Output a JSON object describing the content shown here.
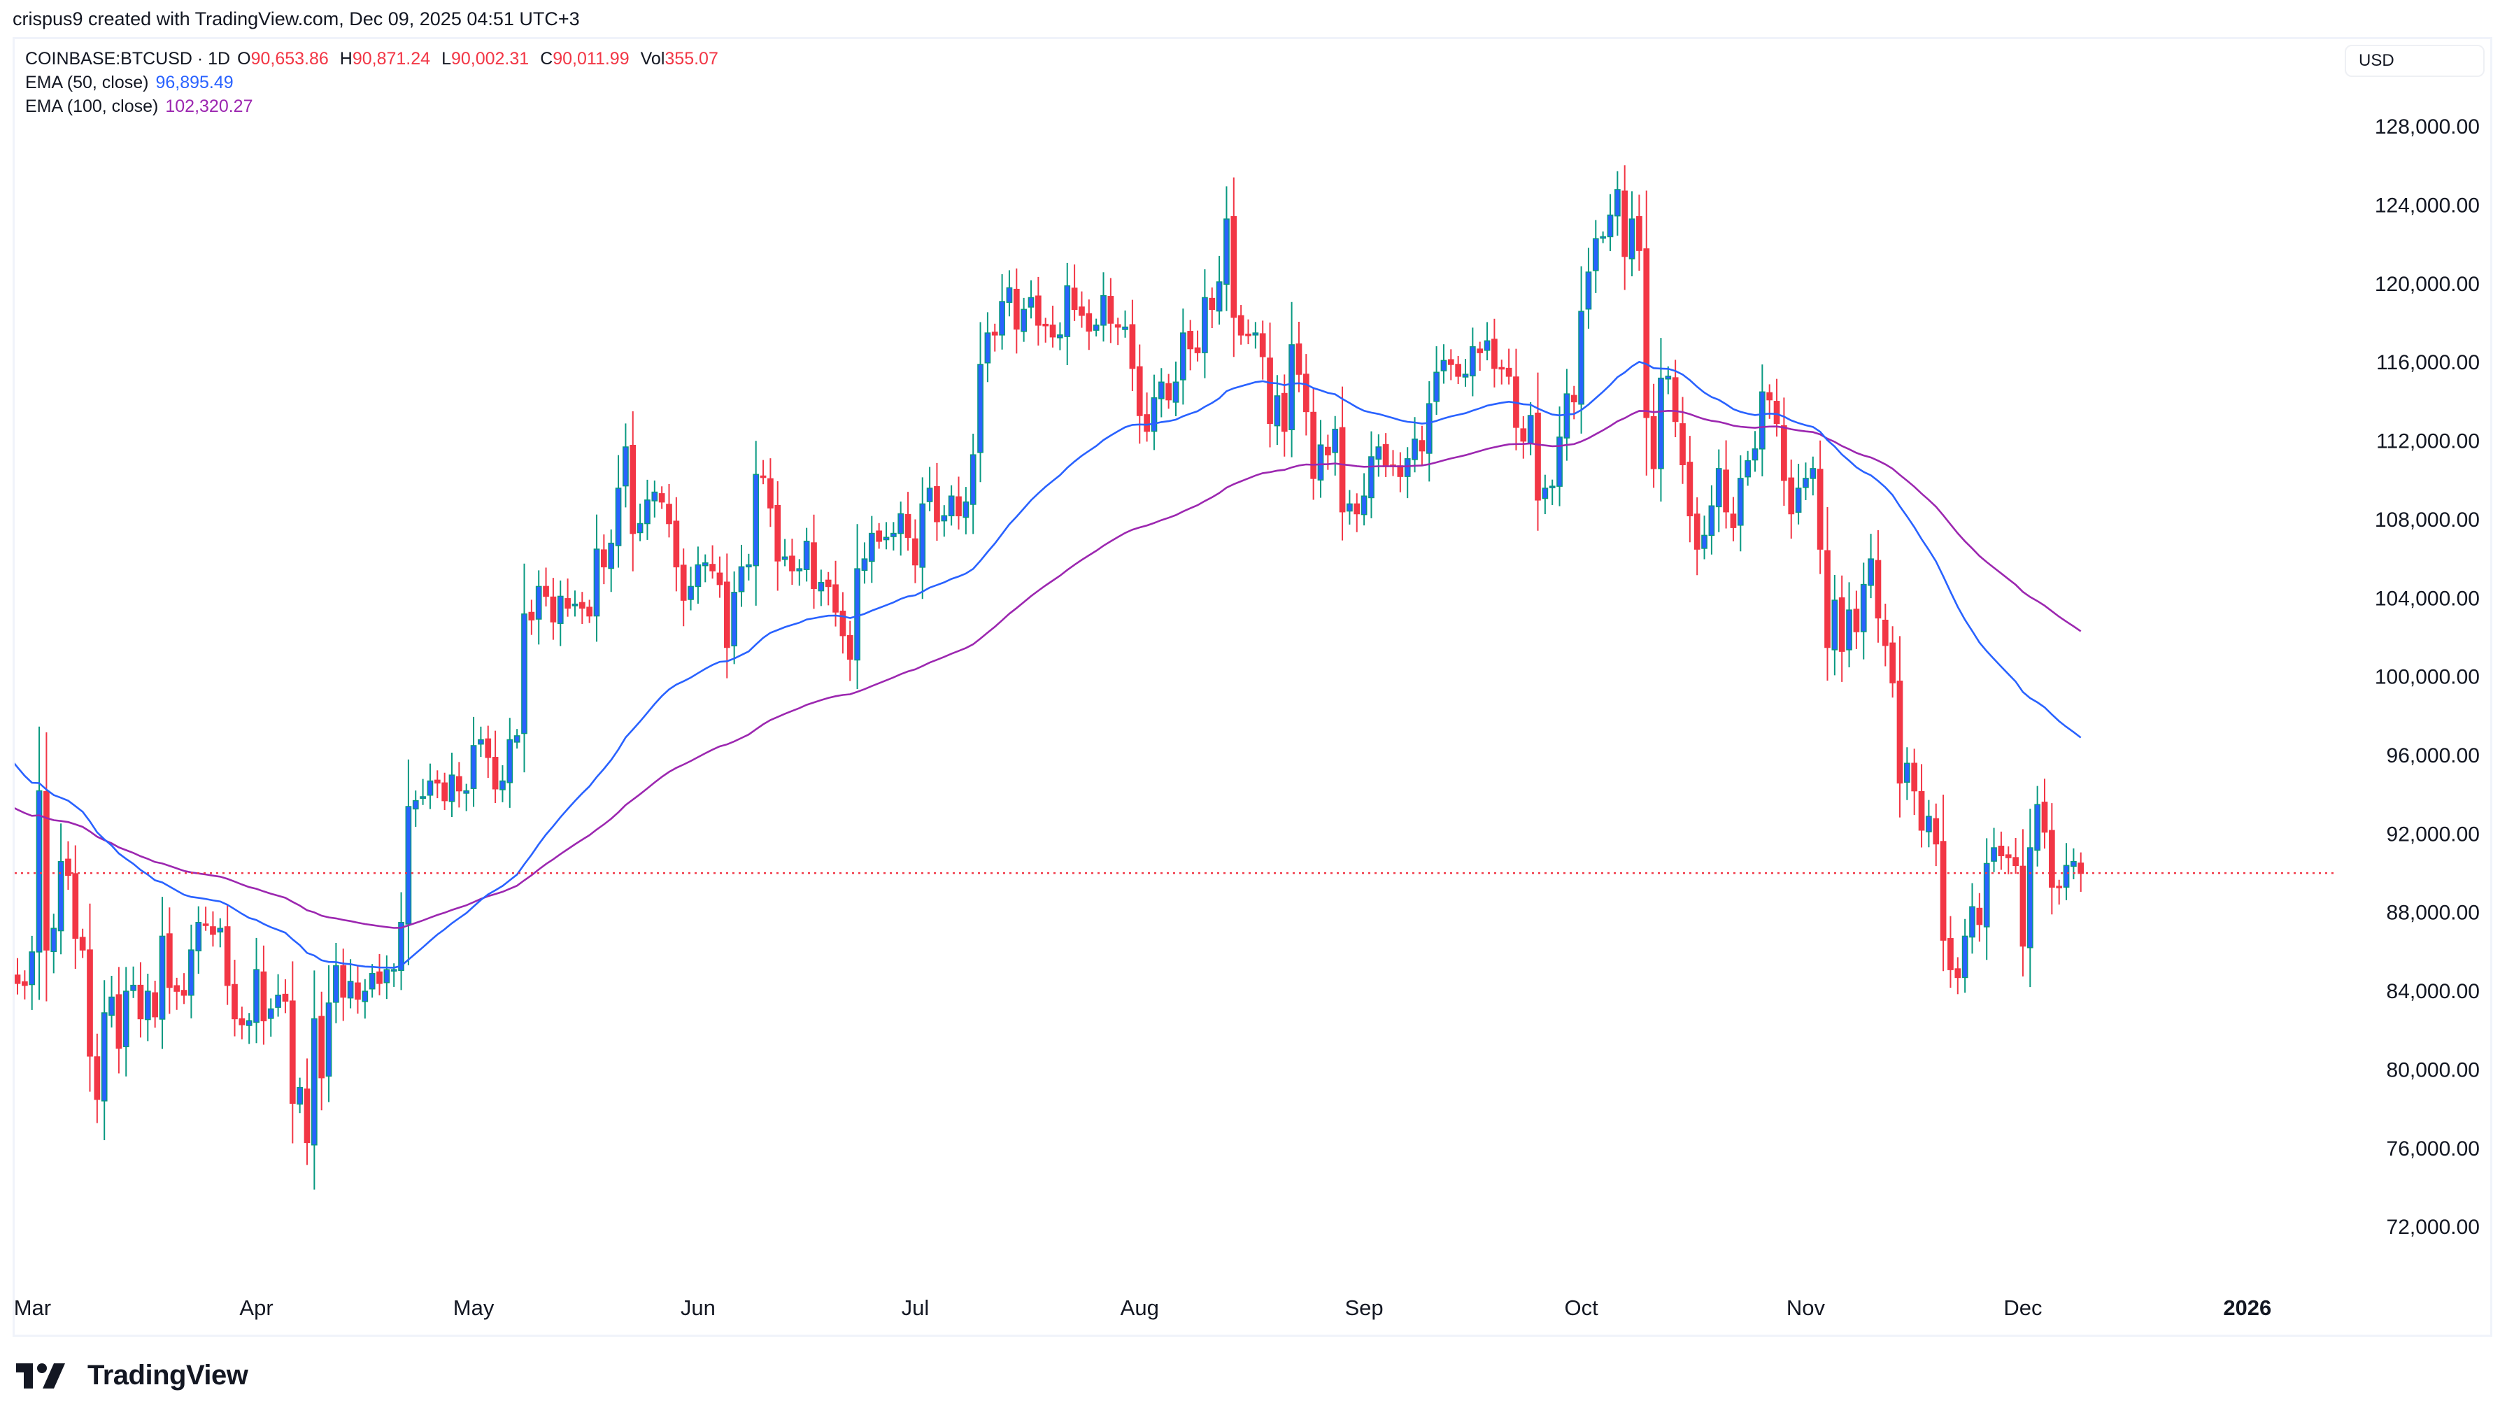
{
  "credit": "crispus9 created with TradingView.com, Dec 09, 2025 04:51 UTC+3",
  "legend": {
    "symbol": "COINBASE:BTCUSD · 1D",
    "o_label": "O",
    "o": "90,653.86",
    "h_label": "H",
    "h": "90,871.24",
    "l_label": "L",
    "l": "90,002.31",
    "c_label": "C",
    "c": "90,011.99",
    "vol_label": "Vol",
    "vol": "355.07",
    "ema50_label": "EMA (50, close)",
    "ema50": "96,895.49",
    "ema100_label": "EMA (100, close)",
    "ema100": "102,320.27"
  },
  "currency": "USD",
  "logo": "TradingView",
  "colors": {
    "up_body": "#2962ff",
    "up_border": "#089981",
    "down": "#F23645",
    "ema50": "#2962ff",
    "ema100": "#9C27B0",
    "last_price_line": "#F23645"
  },
  "chart_data": {
    "type": "candlestick",
    "title": "COINBASE:BTCUSD · 1D",
    "first_date": "2025-02-26",
    "last_close": 90011.99,
    "ylim": [
      69300,
      132560
    ],
    "y_ticks": [
      128000,
      124000,
      120000,
      116000,
      112000,
      108000,
      104000,
      100000,
      96000,
      92000,
      88000,
      84000,
      80000,
      76000,
      72000
    ],
    "y_tick_labels": [
      "128,000.00",
      "124,000.00",
      "120,000.00",
      "116,000.00",
      "112,000.00",
      "108,000.00",
      "104,000.00",
      "100,000.00",
      "96,000.00",
      "92,000.00",
      "88,000.00",
      "84,000.00",
      "80,000.00",
      "76,000.00",
      "72,000.00"
    ],
    "x_ticks": [
      {
        "label": "Mar",
        "day": 0
      },
      {
        "label": "Apr",
        "day": 31
      },
      {
        "label": "May",
        "day": 61
      },
      {
        "label": "Jun",
        "day": 92
      },
      {
        "label": "Jul",
        "day": 122
      },
      {
        "label": "Aug",
        "day": 153
      },
      {
        "label": "Sep",
        "day": 184
      },
      {
        "label": "Oct",
        "day": 214
      },
      {
        "label": "Nov",
        "day": 245
      },
      {
        "label": "Dec",
        "day": 275
      },
      {
        "label": "2026",
        "day": 306
      }
    ],
    "ema_seed": {
      "ema50": 96.3,
      "ema100": 93.6
    },
    "close_usd_thousands": [
      84.7,
      84.4,
      84.3,
      86.0,
      94.2,
      86.1,
      87.2,
      90.6,
      89.9,
      86.7,
      86.1,
      80.7,
      78.5,
      82.9,
      83.7,
      81.1,
      84.0,
      84.3,
      82.6,
      84.0,
      82.7,
      86.8,
      84.2,
      84.0,
      83.8,
      86.1,
      87.5,
      87.4,
      86.9,
      87.2,
      84.3,
      82.6,
      82.3,
      82.5,
      85.1,
      82.5,
      83.1,
      83.8,
      83.5,
      78.3,
      79.1,
      76.3,
      82.6,
      79.6,
      83.4,
      85.3,
      83.7,
      84.5,
      83.6,
      84.0,
      84.9,
      84.4,
      85.1,
      85.1,
      87.5,
      93.4,
      93.7,
      93.9,
      94.7,
      94.6,
      93.7,
      95.0,
      94.2,
      94.2,
      96.5,
      96.8,
      95.9,
      94.3,
      94.7,
      96.8,
      97.0,
      103.2,
      102.9,
      104.6,
      104.1,
      102.8,
      104.1,
      103.5,
      103.7,
      103.5,
      103.1,
      106.5,
      105.6,
      106.8,
      109.6,
      111.7,
      107.3,
      107.8,
      109.0,
      109.4,
      108.9,
      107.8,
      105.6,
      103.9,
      104.6,
      105.7,
      105.8,
      105.4,
      104.7,
      101.5,
      104.3,
      105.6,
      105.7,
      110.3,
      110.2,
      108.6,
      105.9,
      106.1,
      105.4,
      105.5,
      106.9,
      104.5,
      104.8,
      104.6,
      103.3,
      102.1,
      100.9,
      105.5,
      106.0,
      107.3,
      106.9,
      107.1,
      107.3,
      108.3,
      107.1,
      105.7,
      108.8,
      109.6,
      107.9,
      108.2,
      109.2,
      108.2,
      108.9,
      111.3,
      115.9,
      117.5,
      117.4,
      119.1,
      119.8,
      117.7,
      118.7,
      119.3,
      117.9,
      117.9,
      117.3,
      117.4,
      119.9,
      118.7,
      118.4,
      117.6,
      117.9,
      119.4,
      118.0,
      117.8,
      117.8,
      115.7,
      113.3,
      112.5,
      114.2,
      115.0,
      114.1,
      115.0,
      117.5,
      116.7,
      116.5,
      119.3,
      118.7,
      120.1,
      123.3,
      118.3,
      117.4,
      117.4,
      117.5,
      116.3,
      112.9,
      114.3,
      112.5,
      116.9,
      115.4,
      113.5,
      110.1,
      111.8,
      111.3,
      112.6,
      108.4,
      108.8,
      108.3,
      109.2,
      111.2,
      111.7,
      110.7,
      110.7,
      110.2,
      111.1,
      112.1,
      111.5,
      113.9,
      115.5,
      116.1,
      115.9,
      115.3,
      115.4,
      116.8,
      116.5,
      117.1,
      115.7,
      115.7,
      115.3,
      112.7,
      112.0,
      113.3,
      109.0,
      109.6,
      109.7,
      112.2,
      114.4,
      114.0,
      118.6,
      120.6,
      122.3,
      122.4,
      123.5,
      124.8,
      121.4,
      123.3,
      121.7,
      113.2,
      110.6,
      115.2,
      115.3,
      113.0,
      110.8,
      108.2,
      106.5,
      107.2,
      108.7,
      110.6,
      108.4,
      107.6,
      110.1,
      111.0,
      111.6,
      114.5,
      114.1,
      112.9,
      110.0,
      108.3,
      109.6,
      110.1,
      110.6,
      106.5,
      101.5,
      103.9,
      101.3,
      103.4,
      102.3,
      104.7,
      106.0,
      103.0,
      101.6,
      99.7,
      94.6,
      95.6,
      94.2,
      92.2,
      92.9,
      91.5,
      86.6,
      85.1,
      84.7,
      86.8,
      88.3,
      87.4,
      90.5,
      91.3,
      90.9,
      90.8,
      90.4,
      86.3,
      91.3,
      93.5,
      92.1,
      89.3,
      89.3,
      90.4,
      90.6,
      90.0
    ]
  }
}
